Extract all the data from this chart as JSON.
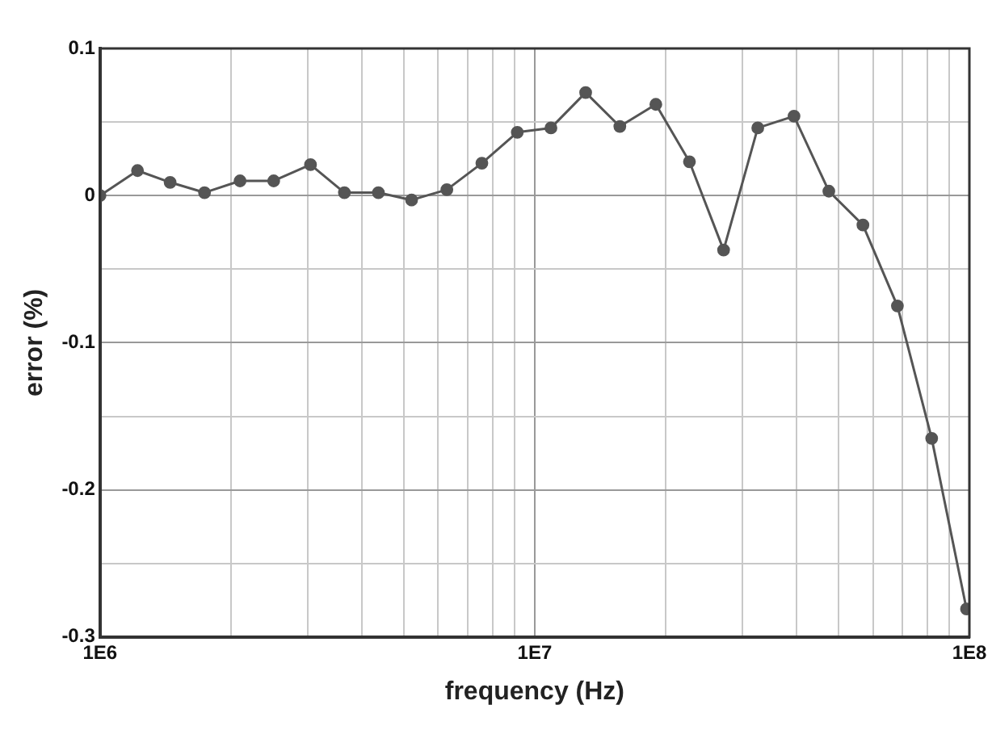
{
  "chart_data": {
    "type": "line",
    "xlabel": "frequency (Hz)",
    "ylabel": "error (%)",
    "log": "x",
    "x": [
      1000000,
      1220000,
      1450000,
      1740000,
      2100000,
      2510000,
      3050000,
      3650000,
      4370000,
      5210000,
      6280000,
      7560000,
      9120000,
      10900000,
      13100000,
      15700000,
      19000000,
      22700000,
      27200000,
      32600000,
      39500000,
      47500000,
      56900000,
      68300000,
      81900000,
      98500000
    ],
    "series": [
      {
        "color": "#555555",
        "values": [
          0,
          0.017,
          0.009,
          0.002,
          0.01,
          0.01,
          0.021,
          0.002,
          0.002,
          -0.003,
          0.004,
          0.022,
          0.043,
          0.046,
          0.07,
          0.047,
          0.062,
          0.023,
          -0.037,
          0.046,
          0.054,
          0.003,
          -0.02,
          -0.075,
          -0.165,
          -0.281
        ]
      }
    ],
    "xlim": [
      1000000,
      100000000
    ],
    "xticks": [
      {
        "value": 1000000,
        "label": "1E6"
      },
      {
        "value": 2000000,
        "label": null
      },
      {
        "value": 3000000,
        "label": null
      },
      {
        "value": 4000000,
        "label": null
      },
      {
        "value": 5000000,
        "label": null
      },
      {
        "value": 6000000,
        "label": null
      },
      {
        "value": 7000000,
        "label": null
      },
      {
        "value": 8000000,
        "label": null
      },
      {
        "value": 9000000,
        "label": null
      },
      {
        "value": 10000000,
        "label": "1E7"
      },
      {
        "value": 20000000,
        "label": null
      },
      {
        "value": 30000000,
        "label": null
      },
      {
        "value": 40000000,
        "label": null
      },
      {
        "value": 50000000,
        "label": null
      },
      {
        "value": 60000000,
        "label": null
      },
      {
        "value": 70000000,
        "label": null
      },
      {
        "value": 80000000,
        "label": null
      },
      {
        "value": 90000000,
        "label": null
      },
      {
        "value": 100000000,
        "label": "1E8"
      }
    ],
    "ylim": [
      -0.3,
      0.1
    ],
    "yticks": [
      -0.3,
      {
        "value": -0.25,
        "label": null
      },
      -0.2,
      {
        "value": -0.15,
        "label": null
      },
      -0.1,
      {
        "value": -0.05,
        "label": null
      },
      0,
      {
        "value": 0.05,
        "label": null
      },
      0.1
    ],
    "grid": true,
    "legend": false,
    "marker": "circle",
    "line_style": "solid"
  }
}
